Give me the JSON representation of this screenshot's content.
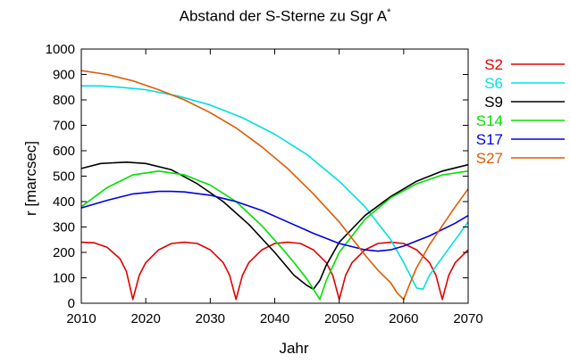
{
  "chart_data": {
    "type": "line",
    "title_main": "Abstand der S-Sterne zu Sgr A",
    "title_sup": "*",
    "xlabel": "Jahr",
    "ylabel": "r [marcsec]",
    "xlim": [
      2010,
      2070
    ],
    "ylim": [
      0,
      1000
    ],
    "xticks": [
      2010,
      2020,
      2030,
      2040,
      2050,
      2060,
      2070
    ],
    "yticks": [
      0,
      100,
      200,
      300,
      400,
      500,
      600,
      700,
      800,
      900,
      1000
    ],
    "grid": false,
    "legend_position": "right",
    "series": [
      {
        "name": "S2",
        "color": "#e00000",
        "x": [
          2010,
          2012,
          2014,
          2016,
          2017,
          2018,
          2019,
          2020,
          2022,
          2024,
          2026,
          2028,
          2030,
          2032,
          2033,
          2034,
          2035,
          2036,
          2038,
          2040,
          2042,
          2044,
          2046,
          2048,
          2049,
          2050,
          2051,
          2052,
          2054,
          2056,
          2058,
          2060,
          2062,
          2064,
          2065,
          2066,
          2067,
          2068,
          2070
        ],
        "y": [
          240,
          238,
          220,
          175,
          125,
          15,
          110,
          160,
          210,
          235,
          240,
          235,
          210,
          160,
          110,
          15,
          110,
          160,
          210,
          235,
          240,
          235,
          210,
          160,
          110,
          15,
          110,
          160,
          210,
          235,
          240,
          235,
          210,
          160,
          110,
          15,
          110,
          160,
          210
        ]
      },
      {
        "name": "S6",
        "color": "#00e0e0",
        "x": [
          2010,
          2013,
          2016,
          2020,
          2025,
          2030,
          2035,
          2040,
          2045,
          2050,
          2054,
          2058,
          2060,
          2061,
          2062,
          2063,
          2064,
          2066,
          2068,
          2070
        ],
        "y": [
          855,
          855,
          850,
          840,
          815,
          780,
          730,
          665,
          585,
          480,
          380,
          250,
          160,
          110,
          60,
          55,
          110,
          180,
          250,
          320
        ]
      },
      {
        "name": "S9",
        "color": "#000000",
        "x": [
          2010,
          2013,
          2017,
          2020,
          2024,
          2028,
          2032,
          2036,
          2040,
          2043,
          2045,
          2046,
          2047,
          2048,
          2050,
          2054,
          2058,
          2062,
          2066,
          2070
        ],
        "y": [
          530,
          550,
          555,
          550,
          525,
          470,
          400,
          310,
          200,
          110,
          70,
          55,
          90,
          150,
          240,
          345,
          420,
          480,
          520,
          545
        ]
      },
      {
        "name": "S14",
        "color": "#00e000",
        "x": [
          2010,
          2014,
          2018,
          2022,
          2026,
          2030,
          2034,
          2038,
          2041,
          2043,
          2045,
          2046,
          2047,
          2048,
          2050,
          2054,
          2058,
          2062,
          2066,
          2070
        ],
        "y": [
          380,
          455,
          505,
          520,
          505,
          465,
          400,
          305,
          220,
          160,
          95,
          55,
          15,
          90,
          200,
          330,
          415,
          470,
          505,
          520
        ]
      },
      {
        "name": "S17",
        "color": "#0000e0",
        "x": [
          2010,
          2014,
          2018,
          2022,
          2024,
          2026,
          2030,
          2034,
          2038,
          2042,
          2046,
          2050,
          2054,
          2056,
          2058,
          2060,
          2064,
          2068,
          2070
        ],
        "y": [
          375,
          405,
          430,
          440,
          440,
          438,
          425,
          400,
          365,
          320,
          275,
          235,
          210,
          205,
          210,
          225,
          265,
          315,
          345
        ]
      },
      {
        "name": "S27",
        "color": "#e05a00",
        "x": [
          2010,
          2014,
          2018,
          2022,
          2026,
          2030,
          2034,
          2038,
          2042,
          2046,
          2050,
          2054,
          2056,
          2058,
          2059,
          2060,
          2061,
          2062,
          2064,
          2066,
          2068,
          2070
        ],
        "y": [
          915,
          900,
          875,
          840,
          800,
          750,
          690,
          615,
          530,
          430,
          320,
          190,
          130,
          80,
          40,
          15,
          80,
          140,
          230,
          305,
          380,
          450
        ]
      }
    ]
  }
}
